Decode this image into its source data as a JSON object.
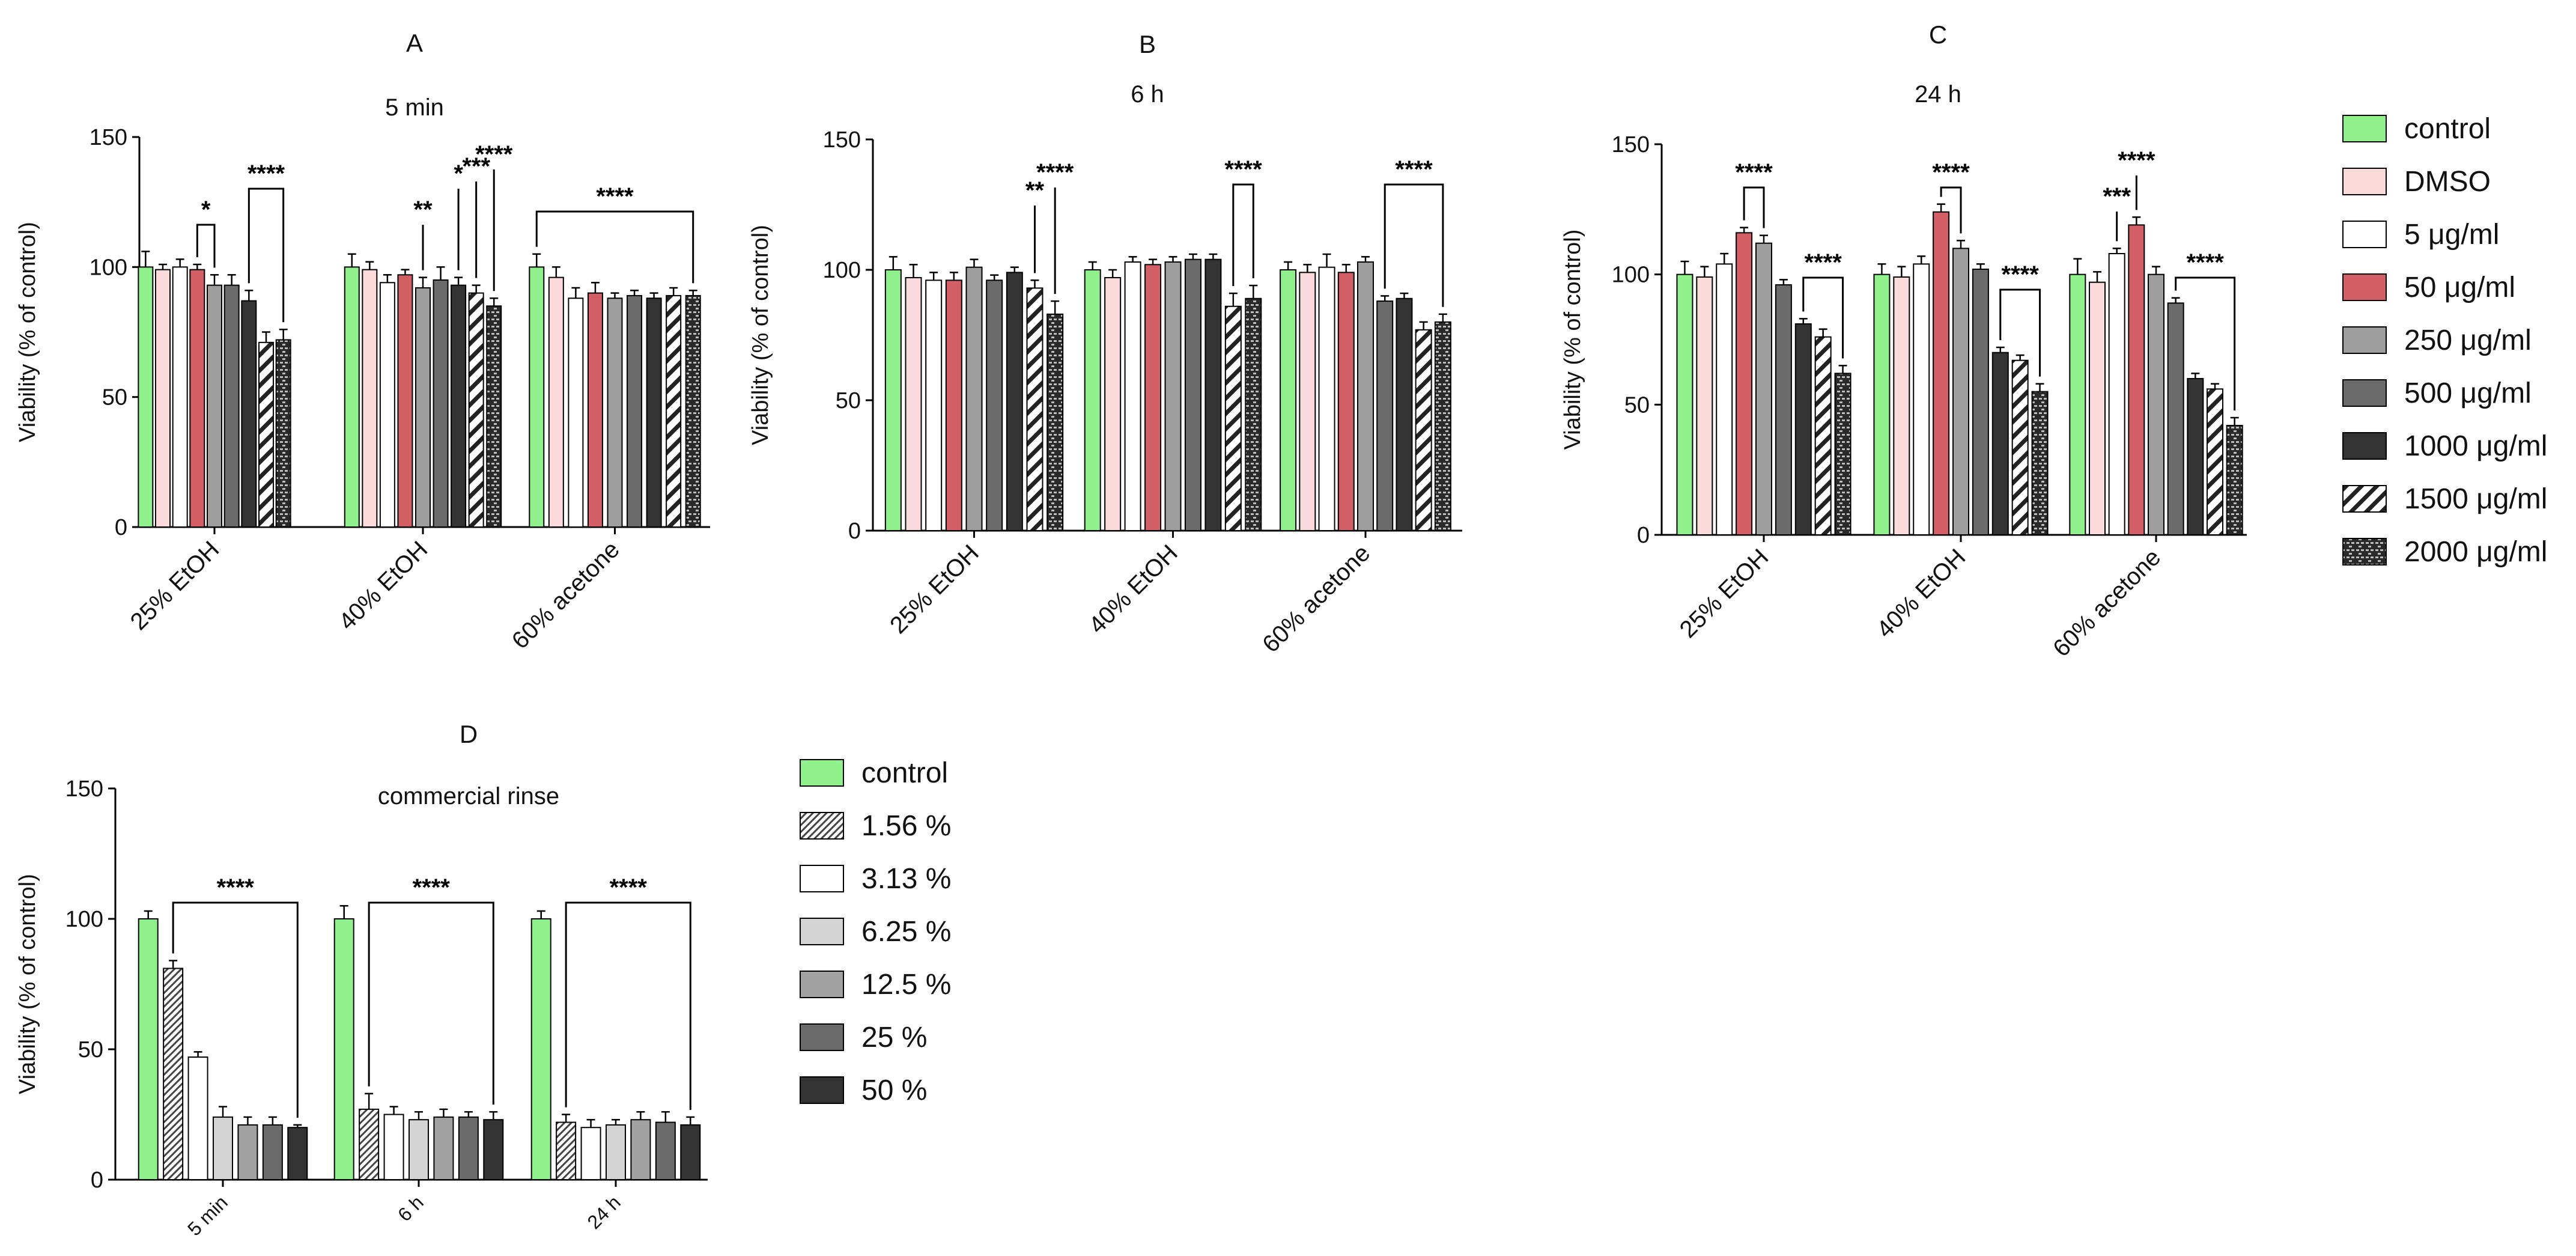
{
  "colors": {
    "control": "#90f08c",
    "DMSO": "#fadadb",
    "5": "#ffffff",
    "50": "#d35f66",
    "250": "#9e9e9e",
    "500": "#6b6b6b",
    "1000": "#333333",
    "1500": "#ffffff",
    "2000": "#2a2a2a"
  },
  "legend_top": {
    "items": [
      {
        "key": "control",
        "label": "control",
        "fill": "#90f08c",
        "pattern": ""
      },
      {
        "key": "DMSO",
        "label": "DMSO",
        "fill": "#fadadb",
        "pattern": ""
      },
      {
        "key": "5",
        "label": "5 μg/ml",
        "fill": "#ffffff",
        "pattern": ""
      },
      {
        "key": "50",
        "label": "50 μg/ml",
        "fill": "#d35f66",
        "pattern": ""
      },
      {
        "key": "250",
        "label": "250 μg/ml",
        "fill": "#9e9e9e",
        "pattern": ""
      },
      {
        "key": "500",
        "label": "500 μg/ml",
        "fill": "#6b6b6b",
        "pattern": ""
      },
      {
        "key": "1000",
        "label": "1000 μg/ml",
        "fill": "#333333",
        "pattern": ""
      },
      {
        "key": "1500",
        "label": "1500 μg/ml",
        "fill": "#ffffff",
        "pattern": "hatch"
      },
      {
        "key": "2000",
        "label": "2000 μg/ml",
        "fill": "#2a2a2a",
        "pattern": "brick"
      }
    ]
  },
  "legend_bottom": {
    "items": [
      {
        "label": "control",
        "fill": "#90f08c",
        "pattern": ""
      },
      {
        "label": "1.56 %",
        "fill": "#ffffff",
        "pattern": "finehatch"
      },
      {
        "label": "3.13 %",
        "fill": "#ffffff",
        "pattern": ""
      },
      {
        "label": "6.25 %",
        "fill": "#d4d4d4",
        "pattern": ""
      },
      {
        "label": "12.5 %",
        "fill": "#a2a2a2",
        "pattern": ""
      },
      {
        "label": "25 %",
        "fill": "#6b6b6b",
        "pattern": ""
      },
      {
        "label": "50 %",
        "fill": "#333333",
        "pattern": ""
      }
    ]
  },
  "chart_data": [
    {
      "type": "bar",
      "letter": "A",
      "title": "5 min",
      "ylabel": "Viability (% of control)",
      "ylim": [
        0,
        150
      ],
      "yticks": [
        0,
        50,
        100,
        150
      ],
      "categories": [
        "25% EtOH",
        "40% EtOH",
        "60% acetone"
      ],
      "series_keys": [
        "control",
        "DMSO",
        "5",
        "50",
        "250",
        "500",
        "1000",
        "1500",
        "2000"
      ],
      "values": [
        [
          100,
          99,
          100,
          99,
          93,
          93,
          87,
          71,
          72
        ],
        [
          100,
          99,
          94,
          97,
          92,
          95,
          93,
          90,
          85
        ],
        [
          100,
          96,
          88,
          90,
          88,
          89,
          88,
          89,
          89
        ]
      ],
      "errors": [
        [
          6,
          2,
          3,
          2,
          4,
          4,
          4,
          4,
          4
        ],
        [
          5,
          3,
          3,
          2,
          4,
          5,
          3,
          3,
          3
        ],
        [
          5,
          4,
          4,
          4,
          2,
          2,
          2,
          3,
          2
        ]
      ],
      "annotations": [
        {
          "text": "*",
          "group": 0,
          "type": "bracket",
          "from": 3,
          "to": 4
        },
        {
          "text": "****",
          "group": 0,
          "type": "bracket",
          "from": 6,
          "to": 8
        },
        {
          "text": "**",
          "group": 1,
          "type": "single",
          "at": 4
        },
        {
          "text": "*",
          "group": 1,
          "type": "single",
          "at": 6
        },
        {
          "text": "***",
          "group": 1,
          "type": "single",
          "at": 7
        },
        {
          "text": "****",
          "group": 1,
          "type": "single",
          "at": 8
        },
        {
          "text": "****",
          "group": 2,
          "type": "wide",
          "from": 0,
          "to": 8
        }
      ]
    },
    {
      "type": "bar",
      "letter": "B",
      "title": "6 h",
      "ylabel": "Viability (% of control)",
      "ylim": [
        0,
        150
      ],
      "yticks": [
        0,
        50,
        100,
        150
      ],
      "categories": [
        "25% EtOH",
        "40% EtOH",
        "60% acetone"
      ],
      "series_keys": [
        "control",
        "DMSO",
        "5",
        "50",
        "250",
        "500",
        "1000",
        "1500",
        "2000"
      ],
      "values": [
        [
          100,
          97,
          96,
          96,
          101,
          96,
          99,
          93,
          83
        ],
        [
          100,
          97,
          103,
          102,
          103,
          104,
          104,
          86,
          89
        ],
        [
          100,
          99,
          101,
          99,
          103,
          88,
          89,
          77,
          80
        ]
      ],
      "errors": [
        [
          5,
          5,
          3,
          3,
          3,
          2,
          2,
          3,
          5
        ],
        [
          3,
          3,
          2,
          2,
          2,
          2,
          2,
          5,
          5
        ],
        [
          3,
          3,
          5,
          3,
          2,
          2,
          2,
          3,
          3
        ]
      ],
      "annotations": [
        {
          "text": "**",
          "group": 0,
          "type": "single",
          "at": 7
        },
        {
          "text": "****",
          "group": 0,
          "type": "single",
          "at": 8
        },
        {
          "text": "****",
          "group": 1,
          "type": "bracket",
          "from": 7,
          "to": 8
        },
        {
          "text": "****",
          "group": 2,
          "type": "bracket",
          "from": 5,
          "to": 8
        }
      ]
    },
    {
      "type": "bar",
      "letter": "C",
      "title": "24 h",
      "ylabel": "Viability (% of control)",
      "ylim": [
        0,
        150
      ],
      "yticks": [
        0,
        50,
        100,
        150
      ],
      "categories": [
        "25% EtOH",
        "40% EtOH",
        "60% acetone"
      ],
      "series_keys": [
        "control",
        "DMSO",
        "5",
        "50",
        "250",
        "500",
        "1000",
        "1500",
        "2000"
      ],
      "values": [
        [
          100,
          99,
          104,
          116,
          112,
          96,
          81,
          76,
          62
        ],
        [
          100,
          99,
          104,
          124,
          110,
          102,
          70,
          67,
          55
        ],
        [
          100,
          97,
          108,
          119,
          100,
          89,
          60,
          56,
          42
        ]
      ],
      "errors": [
        [
          5,
          4,
          4,
          2,
          3,
          2,
          2,
          3,
          3
        ],
        [
          4,
          4,
          3,
          3,
          3,
          2,
          2,
          2,
          3
        ],
        [
          6,
          4,
          2,
          3,
          3,
          2,
          2,
          2,
          3
        ]
      ],
      "annotations": [
        {
          "text": "****",
          "group": 0,
          "type": "bracket",
          "from": 3,
          "to": 4
        },
        {
          "text": "****",
          "group": 0,
          "type": "bracket",
          "from": 6,
          "to": 8
        },
        {
          "text": "****",
          "group": 1,
          "type": "bracket",
          "from": 3,
          "to": 4
        },
        {
          "text": "****",
          "group": 1,
          "type": "bracket",
          "from": 6,
          "to": 8
        },
        {
          "text": "***",
          "group": 2,
          "type": "single",
          "at": 2
        },
        {
          "text": "****",
          "group": 2,
          "type": "single",
          "at": 3
        },
        {
          "text": "****",
          "group": 2,
          "type": "bracket",
          "from": 5,
          "to": 8
        }
      ]
    },
    {
      "type": "bar",
      "letter": "D",
      "title": "commercial rinse",
      "ylabel": "Viability (% of control)",
      "ylim": [
        0,
        150
      ],
      "yticks": [
        0,
        50,
        100,
        150
      ],
      "categories": [
        "5 min",
        "6 h",
        "24 h"
      ],
      "series_keys": [
        "control",
        "1.56 %",
        "3.13 %",
        "6.25 %",
        "12.5 %",
        "25 %",
        "50 %"
      ],
      "values": [
        [
          100,
          81,
          47,
          24,
          21,
          21,
          20
        ],
        [
          100,
          27,
          25,
          23,
          24,
          24,
          23
        ],
        [
          100,
          22,
          20,
          21,
          23,
          22,
          21
        ]
      ],
      "errors": [
        [
          3,
          3,
          2,
          4,
          3,
          3,
          1
        ],
        [
          5,
          6,
          3,
          3,
          3,
          2,
          3
        ],
        [
          3,
          3,
          3,
          2,
          3,
          4,
          3
        ]
      ],
      "annotations": [
        {
          "text": "****",
          "group": 0,
          "type": "bracket",
          "from": 1,
          "to": 6
        },
        {
          "text": "****",
          "group": 1,
          "type": "bracket",
          "from": 1,
          "to": 6
        },
        {
          "text": "****",
          "group": 2,
          "type": "bracket",
          "from": 1,
          "to": 6
        }
      ]
    }
  ]
}
